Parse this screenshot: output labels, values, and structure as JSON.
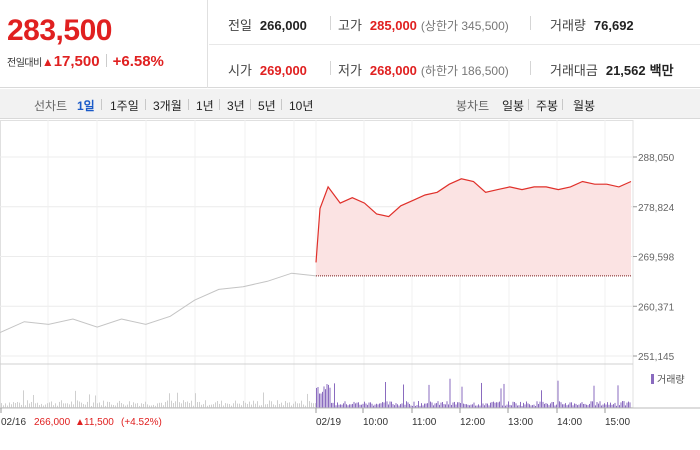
{
  "quote": {
    "price": "283,500",
    "change_label": "전일대비",
    "change_arrow": "▲",
    "change_amount": "17,500",
    "change_percent": "+6.58%",
    "stats": {
      "prev_close_label": "전일",
      "prev_close": "266,000",
      "high_label": "고가",
      "high": "285,000",
      "upper_limit": "(상한가 345,500)",
      "volume_label": "거래량",
      "volume": "76,692",
      "open_label": "시가",
      "open": "269,000",
      "low_label": "저가",
      "low": "268,000",
      "lower_limit": "(하한가 186,500)",
      "value_label": "거래대금",
      "value": "21,562",
      "value_unit": "백만"
    }
  },
  "toolbar": {
    "line_chart_label": "선차트",
    "periods": [
      "1일",
      "1주일",
      "3개월",
      "1년",
      "3년",
      "5년",
      "10년"
    ],
    "active_period": "1일",
    "candle_chart_label": "봉차트",
    "candle_periods": [
      "일봉",
      "주봉",
      "월봉"
    ]
  },
  "chart_data": {
    "type": "line",
    "y_ticks": [
      "288,050",
      "278,824",
      "269,598",
      "260,371",
      "251,145"
    ],
    "ylim": [
      251145,
      288050
    ],
    "x_labels": [
      "02/16",
      "02/19",
      "10:00",
      "11:00",
      "12:00",
      "13:00",
      "14:00",
      "15:00"
    ],
    "volume_legend": "거래량",
    "previous_day_summary": {
      "date": "02/16",
      "close": "266,000",
      "arrow": "▲",
      "change": "11,500",
      "change_percent": "(+4.52%)"
    },
    "reference_price": 266000,
    "series": [
      {
        "x": [
          "02/16 09:00",
          "02/16 09:30",
          "02/16 10:00",
          "02/16 10:30",
          "02/16 11:00",
          "02/16 11:30",
          "02/16 12:00",
          "02/16 12:30",
          "02/16 13:00",
          "02/16 13:30",
          "02/16 14:00",
          "02/16 14:30",
          "02/16 15:00",
          "02/16 15:30"
        ],
        "values": [
          255500,
          257500,
          257000,
          258000,
          256500,
          258000,
          257000,
          258500,
          261500,
          263500,
          264000,
          265000,
          266500,
          266000
        ]
      },
      {
        "x": [
          "02/19 09:00",
          "02/19 09:05",
          "02/19 09:15",
          "02/19 09:30",
          "02/19 09:45",
          "02/19 10:00",
          "02/19 10:15",
          "02/19 10:30",
          "02/19 10:45",
          "02/19 11:00",
          "02/19 11:15",
          "02/19 11:30",
          "02/19 11:45",
          "02/19 12:00",
          "02/19 12:15",
          "02/19 12:30",
          "02/19 12:45",
          "02/19 13:00",
          "02/19 13:15",
          "02/19 13:30",
          "02/19 13:45",
          "02/19 14:00",
          "02/19 14:15",
          "02/19 14:30",
          "02/19 14:45",
          "02/19 15:00",
          "02/19 15:15",
          "02/19 15:30"
        ],
        "values": [
          268500,
          278500,
          282500,
          279500,
          280500,
          279500,
          277500,
          277000,
          279000,
          280000,
          281000,
          281500,
          283000,
          284000,
          283500,
          281500,
          282000,
          282500,
          282000,
          282500,
          282500,
          282000,
          282500,
          283500,
          283000,
          283000,
          282500,
          283500
        ]
      }
    ]
  }
}
